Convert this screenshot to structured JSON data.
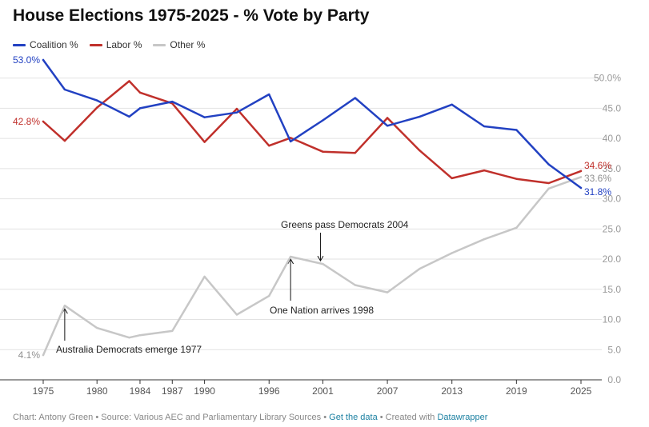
{
  "title": "House Elections 1975-2025 - % Vote by Party",
  "legend": [
    {
      "label": "Coalition %",
      "color": "#2241c2"
    },
    {
      "label": "Labor %",
      "color": "#c0302b"
    },
    {
      "label": "Other %",
      "color": "#c7c7c7"
    }
  ],
  "footer": {
    "prefix": "Chart: Antony Green • Source: Various AEC and Parliamentary Library Sources • ",
    "get_data": "Get the data",
    "middle": " • Created with ",
    "datawrapper": "Datawrapper"
  },
  "chart_data": {
    "type": "line",
    "title": "House Elections 1975-2025 - % Vote by Party",
    "xlabel": "",
    "ylabel": "",
    "xlim": [
      1975,
      2025
    ],
    "ylim": [
      0,
      53
    ],
    "x_ticks": [
      1975,
      1980,
      1984,
      1987,
      1990,
      1996,
      2001,
      2007,
      2013,
      2019,
      2025
    ],
    "y_ticks": [
      {
        "value": 0,
        "label": "0.0"
      },
      {
        "value": 5,
        "label": "5.0"
      },
      {
        "value": 10,
        "label": "10.0"
      },
      {
        "value": 15,
        "label": "15.0"
      },
      {
        "value": 20,
        "label": "20.0"
      },
      {
        "value": 25,
        "label": "25.0"
      },
      {
        "value": 30,
        "label": "30.0"
      },
      {
        "value": 35,
        "label": "35.0"
      },
      {
        "value": 40,
        "label": "40.0"
      },
      {
        "value": 45,
        "label": "45.0"
      },
      {
        "value": 50,
        "label": "50.0%"
      }
    ],
    "x": [
      1975,
      1977,
      1980,
      1983,
      1984,
      1987,
      1990,
      1993,
      1996,
      1998,
      2001,
      2004,
      2007,
      2010,
      2013,
      2016,
      2019,
      2022,
      2025
    ],
    "series": [
      {
        "name": "Coalition %",
        "color": "#2241c2",
        "values": [
          53.0,
          48.1,
          46.3,
          43.6,
          45.0,
          46.1,
          43.5,
          44.3,
          47.3,
          39.5,
          43.0,
          46.7,
          42.1,
          43.6,
          45.6,
          42.0,
          41.4,
          35.7,
          31.8
        ],
        "start_label": "53.0%",
        "end_label": "31.8%"
      },
      {
        "name": "Labor %",
        "color": "#c0302b",
        "values": [
          42.8,
          39.6,
          45.1,
          49.5,
          47.6,
          45.8,
          39.4,
          44.9,
          38.8,
          40.1,
          37.8,
          37.6,
          43.4,
          38.0,
          33.4,
          34.7,
          33.3,
          32.6,
          34.6
        ],
        "start_label": "42.8%",
        "end_label": "34.6%"
      },
      {
        "name": "Other %",
        "color": "#c7c7c7",
        "values": [
          4.1,
          12.3,
          8.6,
          7.0,
          7.4,
          8.1,
          17.1,
          10.8,
          13.9,
          20.4,
          19.2,
          15.7,
          14.5,
          18.4,
          21.0,
          23.3,
          25.2,
          31.7,
          33.6
        ],
        "start_label": "4.1%",
        "end_label": "33.6%"
      }
    ],
    "annotations": [
      {
        "text": "Australia Democrats emerge 1977",
        "x": 1977,
        "y": 12.3
      },
      {
        "text": "One Nation arrives 1998",
        "x": 1998,
        "y": 20.4
      },
      {
        "text": "Greens pass Democrats 2004",
        "x": 2001,
        "y": 19.2
      }
    ],
    "grid": true,
    "legend_position": "top-left"
  }
}
